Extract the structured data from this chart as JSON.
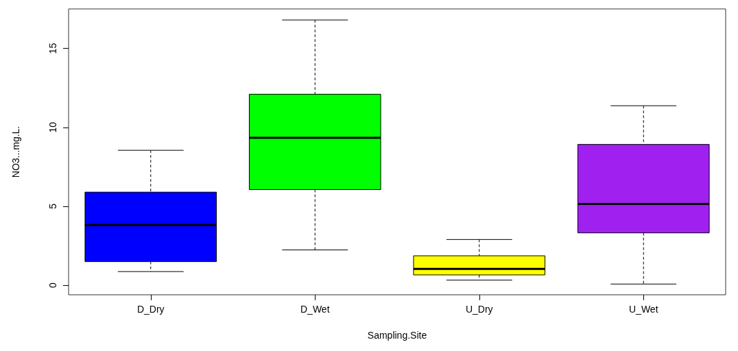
{
  "chart_data": {
    "type": "box",
    "xlabel": "Sampling.Site",
    "ylabel": "NO3...mg.L.",
    "categories": [
      "D_Dry",
      "D_Wet",
      "U_Dry",
      "U_Wet"
    ],
    "colors": [
      "#0000ff",
      "#00ff00",
      "#ffff00",
      "#a020f0"
    ],
    "boxes": [
      {
        "low": 0.87,
        "q1": 1.5,
        "median": 3.82,
        "q3": 5.9,
        "high": 8.55
      },
      {
        "low": 2.24,
        "q1": 6.06,
        "median": 9.34,
        "q3": 12.1,
        "high": 16.8
      },
      {
        "low": 0.33,
        "q1": 0.66,
        "median": 1.04,
        "q3": 1.87,
        "high": 2.9
      },
      {
        "low": 0.08,
        "q1": 3.32,
        "median": 5.15,
        "q3": 8.92,
        "high": 11.37
      }
    ],
    "ylim": [
      -0.6,
      17.5
    ],
    "yticks": [
      0,
      5,
      10,
      15
    ],
    "grid": false
  }
}
